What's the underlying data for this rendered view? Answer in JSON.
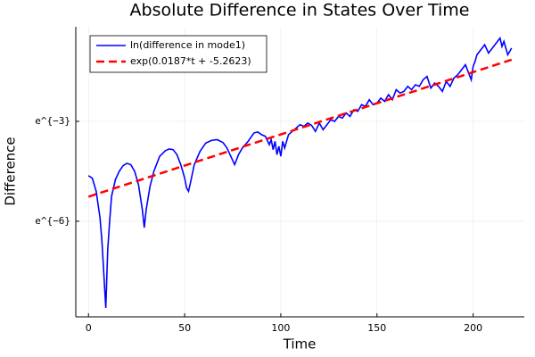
{
  "chart_data": {
    "type": "line",
    "title": "Absolute Difference in States Over Time",
    "xlabel": "Time",
    "ylabel": "Difference",
    "xlim": [
      -6.6,
      226.6
    ],
    "ylim": [
      -8.87,
      -0.16
    ],
    "xticks": [
      0,
      50,
      100,
      150,
      200
    ],
    "yticks": [
      {
        "value": -3,
        "label": "e^{−3}"
      },
      {
        "value": -6,
        "label": "e^{−6}"
      }
    ],
    "grid": true,
    "legend": "top-left",
    "series": [
      {
        "name": "ln(difference in mode1)",
        "color": "#0000ff",
        "style": "solid",
        "x": [
          0,
          2,
          4,
          6,
          7,
          8,
          9,
          10,
          11,
          12,
          14,
          16,
          18,
          20,
          22,
          24,
          26,
          28,
          29,
          30,
          32,
          34,
          37,
          40,
          42,
          44,
          46,
          48,
          50,
          51,
          52,
          53,
          55,
          58,
          61,
          64,
          67,
          70,
          72,
          74,
          76,
          78,
          80,
          83,
          86,
          88,
          90,
          92,
          94,
          95,
          96,
          97,
          98,
          99,
          100,
          101,
          102,
          104,
          106,
          108,
          110,
          112,
          114,
          116,
          118,
          120,
          122,
          124,
          126,
          128,
          130,
          132,
          134,
          136,
          138,
          140,
          142,
          144,
          146,
          148,
          150,
          152,
          154,
          156,
          158,
          160,
          162,
          164,
          166,
          168,
          170,
          172,
          174,
          176,
          178,
          180,
          182,
          184,
          186,
          188,
          190,
          192,
          194,
          196,
          198,
          199,
          200,
          201,
          202,
          204,
          206,
          208,
          210,
          212,
          214,
          215,
          216,
          218,
          220
        ],
        "values": [
          -4.63,
          -4.71,
          -5.1,
          -5.9,
          -6.6,
          -7.6,
          -8.6,
          -6.86,
          -6.0,
          -5.25,
          -4.75,
          -4.5,
          -4.33,
          -4.26,
          -4.3,
          -4.5,
          -4.9,
          -5.65,
          -6.19,
          -5.65,
          -4.95,
          -4.5,
          -4.05,
          -3.88,
          -3.83,
          -3.85,
          -4.0,
          -4.3,
          -4.7,
          -5.0,
          -5.1,
          -4.85,
          -4.3,
          -3.9,
          -3.65,
          -3.57,
          -3.55,
          -3.64,
          -3.8,
          -4.05,
          -4.3,
          -4.0,
          -3.8,
          -3.6,
          -3.35,
          -3.32,
          -3.4,
          -3.45,
          -3.7,
          -3.55,
          -3.85,
          -3.6,
          -4.0,
          -3.75,
          -4.05,
          -3.6,
          -3.8,
          -3.4,
          -3.3,
          -3.2,
          -3.1,
          -3.15,
          -3.05,
          -3.12,
          -3.3,
          -3.05,
          -3.25,
          -3.1,
          -2.95,
          -3.0,
          -2.85,
          -2.9,
          -2.75,
          -2.85,
          -2.65,
          -2.7,
          -2.5,
          -2.55,
          -2.35,
          -2.5,
          -2.45,
          -2.3,
          -2.4,
          -2.2,
          -2.35,
          -2.05,
          -2.15,
          -2.1,
          -1.95,
          -2.05,
          -1.9,
          -1.95,
          -1.75,
          -1.65,
          -2.0,
          -1.85,
          -1.95,
          -2.1,
          -1.8,
          -1.95,
          -1.7,
          -1.6,
          -1.45,
          -1.3,
          -1.6,
          -1.75,
          -1.35,
          -1.2,
          -1.0,
          -0.85,
          -0.7,
          -0.95,
          -0.8,
          -0.65,
          -0.5,
          -0.75,
          -0.6,
          -1.0,
          -0.8
        ]
      },
      {
        "name": "exp(0.0187*t + -5.2623)",
        "color": "#ff0000",
        "style": "dashed",
        "x": [
          0,
          220
        ],
        "values": [
          -5.2623,
          -1.1483
        ]
      }
    ]
  }
}
